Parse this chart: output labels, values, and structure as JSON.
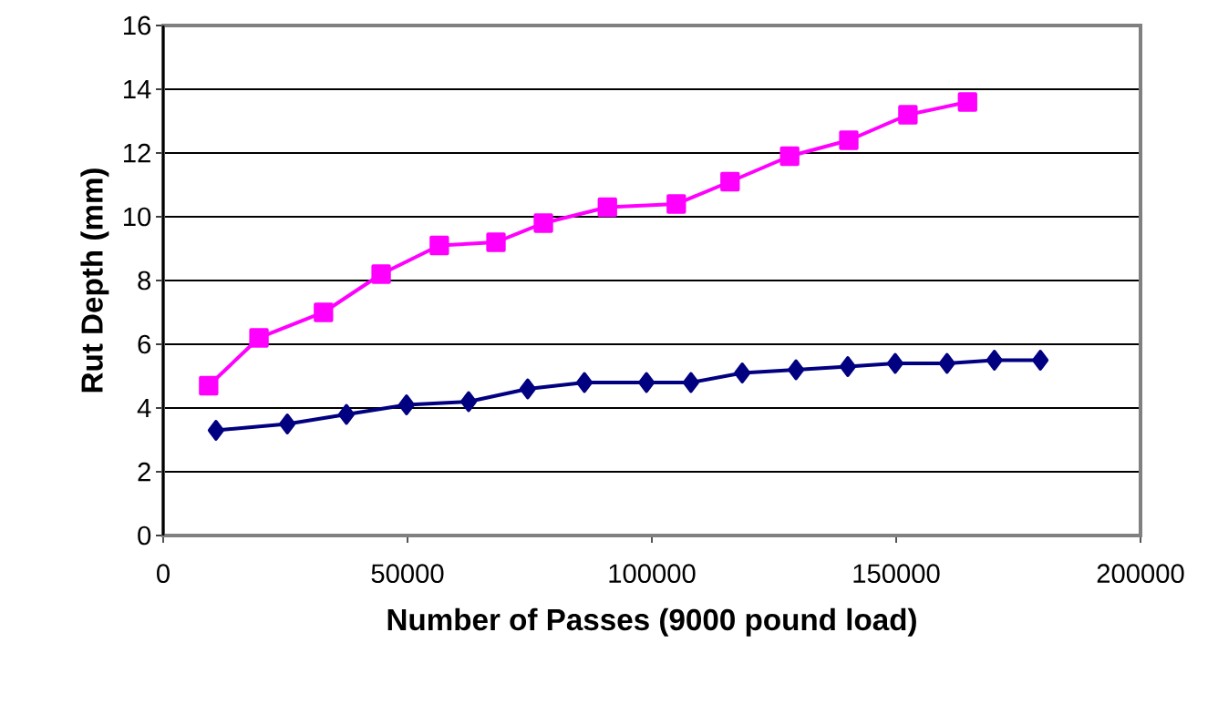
{
  "chart_data": {
    "type": "line",
    "xlabel": "Number of Passes (9000 pound load)",
    "ylabel": "Rut Depth (mm)",
    "xlim": [
      0,
      200000
    ],
    "xticks": [
      0,
      50000,
      100000,
      150000,
      200000
    ],
    "ylim": [
      0,
      16
    ],
    "yticks": [
      0,
      2,
      4,
      6,
      8,
      10,
      12,
      14,
      16
    ],
    "grid": "y",
    "series": [
      {
        "color": "#000080",
        "marker": "diamond",
        "x": [
          10800,
          25400,
          37500,
          49800,
          62500,
          74600,
          86200,
          98900,
          108000,
          118500,
          129500,
          140100,
          149800,
          160400,
          170100,
          179500
        ],
        "values": [
          3.3,
          3.5,
          3.8,
          4.1,
          4.2,
          4.6,
          4.8,
          4.8,
          4.8,
          5.1,
          5.2,
          5.3,
          5.4,
          5.4,
          5.5,
          5.5
        ]
      },
      {
        "color": "#ff00ff",
        "marker": "square",
        "x": [
          9300,
          19600,
          32800,
          44600,
          56500,
          68100,
          77800,
          90900,
          105000,
          116000,
          128200,
          140300,
          152400,
          164600
        ],
        "values": [
          4.7,
          6.2,
          7.0,
          8.2,
          9.1,
          9.2,
          9.8,
          10.3,
          10.4,
          11.1,
          11.9,
          12.4,
          13.2,
          13.6
        ]
      }
    ]
  }
}
